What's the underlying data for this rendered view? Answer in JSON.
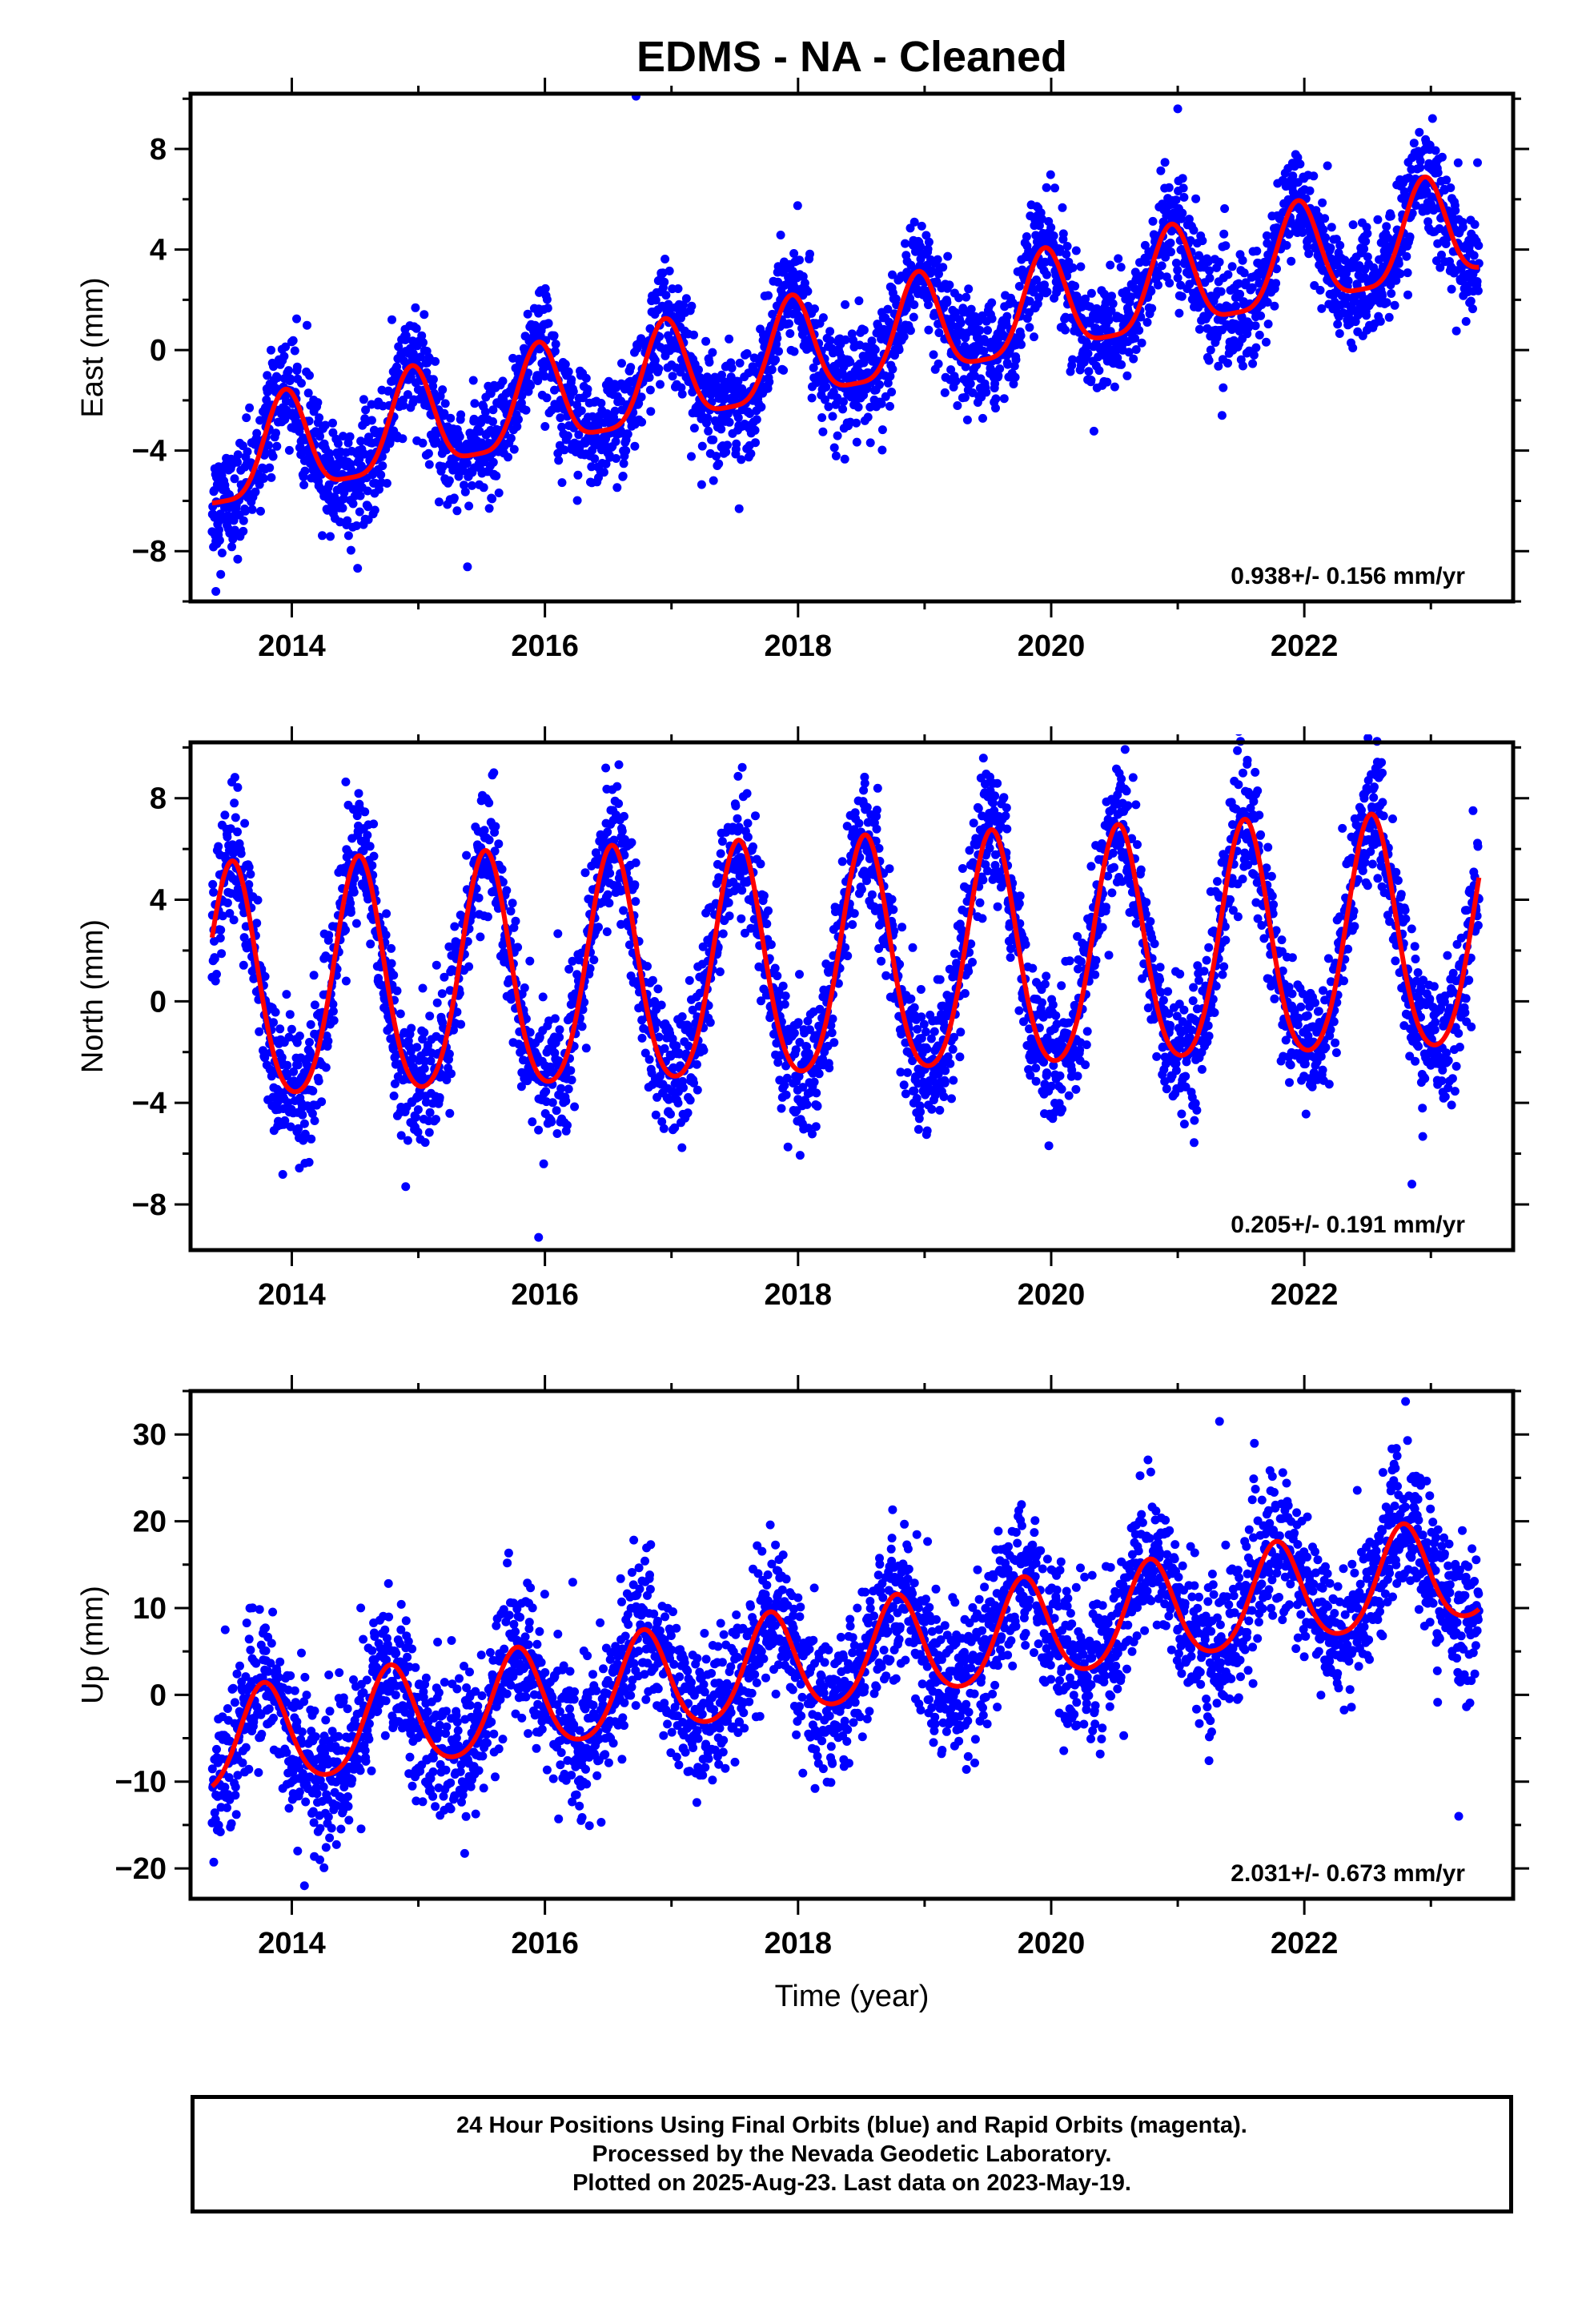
{
  "title": "EDMS  - NA - Cleaned",
  "colors": {
    "data_points": "#0000ff",
    "model_fit": "#ff0000",
    "axes": "#000000"
  },
  "footer": {
    "line1": "24 Hour Positions Using Final Orbits (blue) and Rapid Orbits (magenta).",
    "line2": "Processed by the Nevada Geodetic Laboratory.",
    "line3": "Plotted on 2025-Aug-23. Last data on 2023-May-19."
  },
  "chart_data": [
    {
      "type": "scatter",
      "ylabel": "East (mm)",
      "xlim": [
        2013.2,
        2023.65
      ],
      "ylim": [
        -10,
        10.2
      ],
      "x_ticks": [
        2014,
        2016,
        2018,
        2020,
        2022
      ],
      "y_ticks": [
        -8,
        -4,
        0,
        4,
        8
      ],
      "x_start": 2013.37,
      "x_end": 2023.38,
      "velocity_text": "0.938+/- 0.156 mm/yr",
      "model": {
        "offset": -4.6,
        "rate_mm_per_yr": 0.938,
        "annual_amplitude": 2.0,
        "annual_phase_peak": 0.95,
        "semiannual_amplitude": 0.5,
        "scatter_sd": 1.1
      },
      "outliers": [
        [
          2016.72,
          10.1
        ],
        [
          2021.0,
          9.6
        ],
        [
          2021.35,
          -2.6
        ],
        [
          2013.4,
          -9.6
        ]
      ]
    },
    {
      "type": "scatter",
      "ylabel": "North (mm)",
      "xlim": [
        2013.2,
        2023.65
      ],
      "ylim": [
        -9.8,
        10.2
      ],
      "x_ticks": [
        2014,
        2016,
        2018,
        2020,
        2022
      ],
      "y_ticks": [
        -8,
        -4,
        0,
        4,
        8
      ],
      "x_start": 2013.37,
      "x_end": 2023.38,
      "velocity_text": "0.205+/- 0.191 mm/yr",
      "model": {
        "offset": 0.3,
        "rate_mm_per_yr": 0.205,
        "annual_amplitude": 4.6,
        "annual_phase_peak": 0.53,
        "semiannual_amplitude": 0.6,
        "scatter_sd": 1.3
      },
      "outliers": [
        [
          2015.95,
          -9.3
        ],
        [
          2021.55,
          9.5
        ],
        [
          2022.85,
          -7.2
        ],
        [
          2014.9,
          -7.3
        ]
      ]
    },
    {
      "type": "scatter",
      "ylabel": "Up (mm)",
      "xlabel": "Time (year)",
      "xlim": [
        2013.2,
        2023.65
      ],
      "ylim": [
        -23.5,
        35
      ],
      "x_ticks": [
        2014,
        2016,
        2018,
        2020,
        2022
      ],
      "y_ticks": [
        -20,
        -10,
        0,
        10,
        20,
        30
      ],
      "x_start": 2013.37,
      "x_end": 2023.38,
      "velocity_text": "2.031+/- 0.673 mm/yr",
      "model": {
        "offset": -6.0,
        "rate_mm_per_yr": 2.031,
        "annual_amplitude": 5.8,
        "annual_phase_peak": 0.78,
        "semiannual_amplitude": 0.8,
        "scatter_sd": 4.2
      },
      "outliers": [
        [
          2021.33,
          31.5
        ],
        [
          2022.8,
          33.8
        ],
        [
          2014.1,
          -22.0
        ],
        [
          2023.22,
          -14.0
        ]
      ]
    }
  ]
}
